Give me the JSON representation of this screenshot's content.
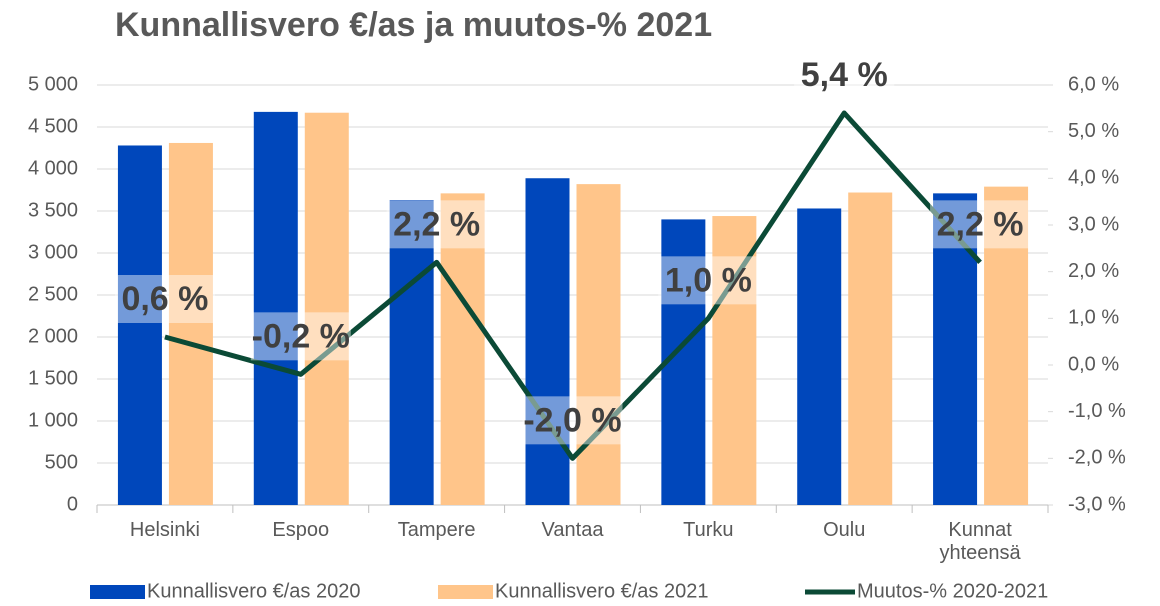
{
  "chart_data": {
    "type": "bar_line",
    "title": "Kunnallisvero €/as ja muutos-% 2021",
    "categories": [
      "Helsinki",
      "Espoo",
      "Tampere",
      "Vantaa",
      "Turku",
      "Oulu",
      "Kunnat yhteensä"
    ],
    "series": [
      {
        "name": "Kunnallisvero €/as 2020",
        "type": "bar",
        "color": "#0047bb",
        "values": [
          4280,
          4680,
          3630,
          3890,
          3400,
          3530,
          3710
        ]
      },
      {
        "name": "Kunnallisvero €/as 2021",
        "type": "bar",
        "color": "#ffc58a",
        "values": [
          4310,
          4670,
          3710,
          3820,
          3440,
          3720,
          3790
        ]
      },
      {
        "name": "Muutos-% 2020-2021",
        "type": "line",
        "axis": "y2",
        "color": "#0b4a36",
        "values": [
          0.6,
          -0.2,
          2.2,
          -2.0,
          1.0,
          5.4,
          2.2
        ],
        "value_labels": [
          "0,6 %",
          "-0,2 %",
          "2,2 %",
          "-2,0 %",
          "1,0 %",
          "5,4 %",
          "2,2 %"
        ]
      }
    ],
    "ylim": [
      0,
      5000
    ],
    "yticks": [
      0,
      500,
      {
        "value": 1000,
        "label": "1 000"
      },
      {
        "value": 1500,
        "label": "1 500"
      },
      {
        "value": 2000,
        "label": "2 000"
      },
      {
        "value": 2500,
        "label": "2 500"
      },
      {
        "value": 3000,
        "label": "3 000"
      },
      {
        "value": 3500,
        "label": "3 500"
      },
      {
        "value": 4000,
        "label": "4 000"
      },
      {
        "value": 4500,
        "label": "4 500"
      },
      {
        "value": 5000,
        "label": "5 000"
      }
    ],
    "y2lim": [
      -3,
      6
    ],
    "y2ticks": [
      {
        "value": -3,
        "label": "-3,0 %"
      },
      {
        "value": -2,
        "label": "-2,0 %"
      },
      {
        "value": -1,
        "label": "-1,0 %"
      },
      {
        "value": 0,
        "label": "0,0 %"
      },
      {
        "value": 1,
        "label": "1,0 %"
      },
      {
        "value": 2,
        "label": "2,0 %"
      },
      {
        "value": 3,
        "label": "3,0 %"
      },
      {
        "value": 4,
        "label": "4,0 %"
      },
      {
        "value": 5,
        "label": "5,0 %"
      },
      {
        "value": 6,
        "label": "6,0 %"
      }
    ],
    "grid": true,
    "legend": "bottom"
  }
}
